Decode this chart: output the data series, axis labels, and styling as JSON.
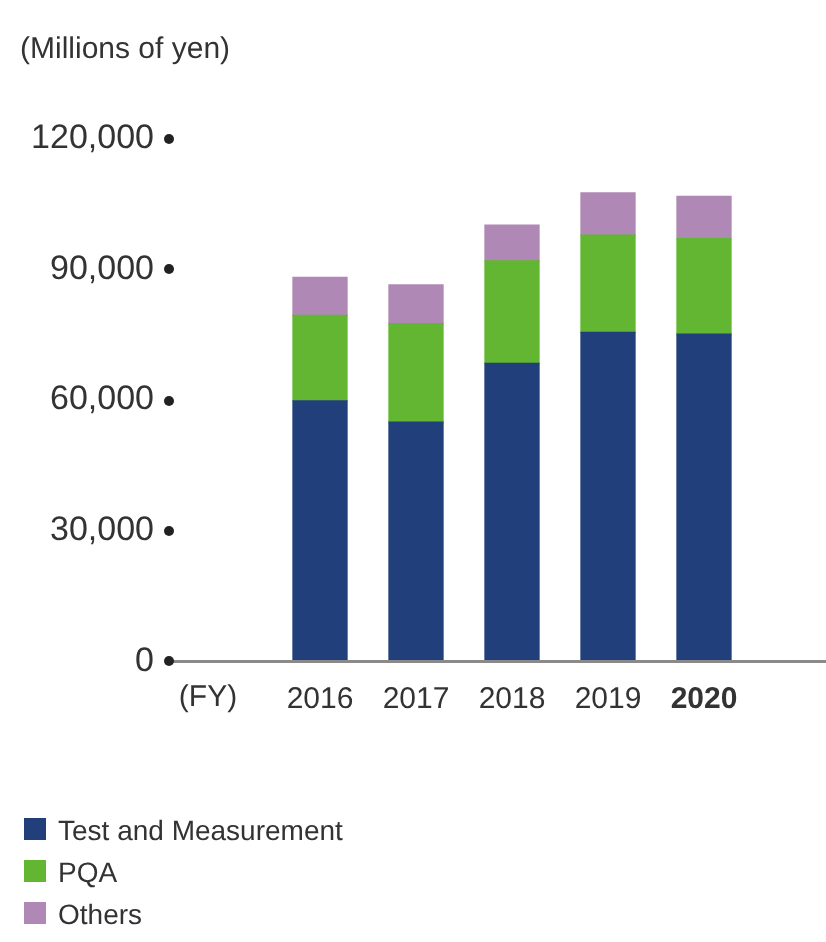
{
  "chart_data": {
    "type": "bar",
    "stacked": true,
    "ylabel": "(Millions of yen)",
    "xlabel": "(FY)",
    "categories": [
      "2016",
      "2017",
      "2018",
      "2019",
      "2020"
    ],
    "series": [
      {
        "name": "Test and Measurement",
        "color": "#213f7a",
        "values": [
          59800,
          54900,
          68400,
          75500,
          75100
        ]
      },
      {
        "name": "PQA",
        "color": "#62b631",
        "values": [
          19600,
          22600,
          23500,
          22300,
          21900
        ]
      },
      {
        "name": "Others",
        "color": "#b088b5",
        "values": [
          8700,
          8900,
          8200,
          9700,
          9700
        ]
      }
    ],
    "ylim": [
      0,
      120000
    ],
    "yticks": [
      0,
      {
        "value": 30000,
        "label": "30,000"
      },
      {
        "value": 60000,
        "label": "60,000"
      },
      {
        "value": 90000,
        "label": "90,000"
      },
      {
        "value": 120000,
        "label": "120,000"
      }
    ],
    "grid": false,
    "legend": "bottom"
  }
}
